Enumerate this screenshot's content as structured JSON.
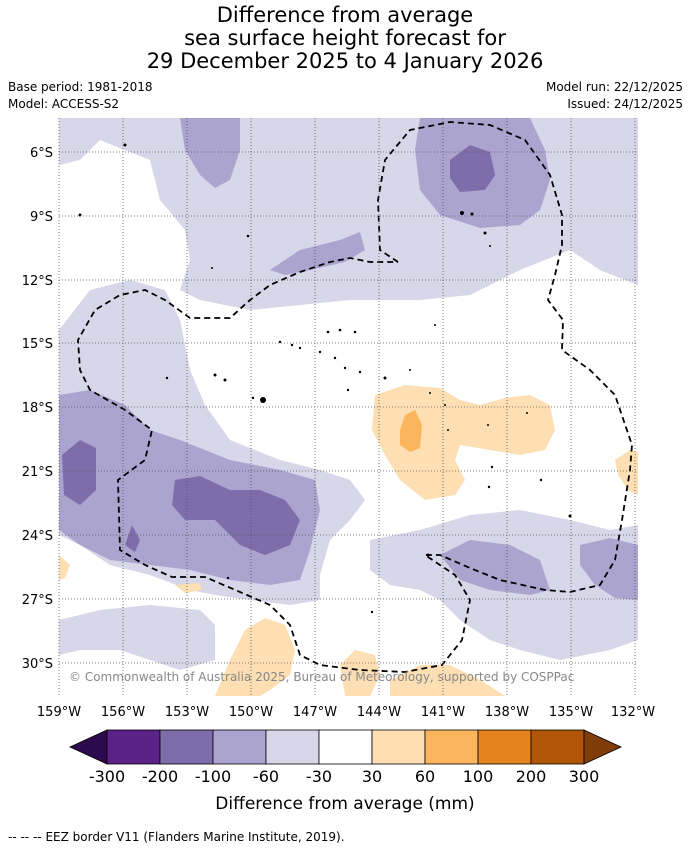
{
  "title": {
    "line1": "Difference from average",
    "line2": "sea surface height forecast for",
    "line3": "29 December 2025 to 4 January 2026"
  },
  "meta": {
    "base_period": "Base period: 1981-2018",
    "model": "Model: ACCESS-S2",
    "model_run": "Model run: 22/12/2025",
    "issued": "Issued: 24/12/2025"
  },
  "map": {
    "copyright": "© Commonwealth of Australia 2025, Bureau of Meteorology, supported by COSPPac",
    "lat_labels": [
      "6°S",
      "9°S",
      "12°S",
      "15°S",
      "18°S",
      "21°S",
      "24°S",
      "27°S",
      "30°S"
    ],
    "lon_labels": [
      "159°W",
      "156°W",
      "153°W",
      "150°W",
      "147°W",
      "144°W",
      "141°W",
      "138°W",
      "135°W",
      "132°W"
    ]
  },
  "colorbar": {
    "tick_labels": [
      "-300",
      "-200",
      "-100",
      "-60",
      "-30",
      "30",
      "60",
      "100",
      "200",
      "300"
    ],
    "colors": [
      "#5a2187",
      "#7f6dab",
      "#aba4cf",
      "#d7d7e9",
      "#ffffff",
      "#fddfb3",
      "#fbb55d",
      "#e4821c",
      "#b15608"
    ],
    "under_color": "#2d0a4e",
    "over_color": "#7f3b08",
    "label": "Difference from average (mm)"
  },
  "footer": {
    "legend_symbol": "-- -- --",
    "text": "EEZ border V11 (Flanders Marine Institute, 2019)."
  }
}
